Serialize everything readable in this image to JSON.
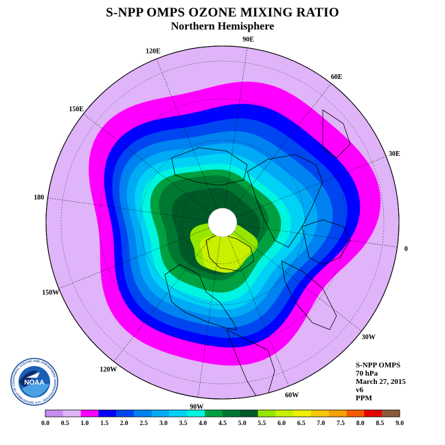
{
  "header": {
    "title": "S-NPP OMPS OZONE MIXING RATIO",
    "subtitle": "Northern Hemisphere"
  },
  "info_block": {
    "instrument": "S-NPP OMPS",
    "level": "70 hPa",
    "date": "March 27, 2015",
    "version": "v6",
    "units": "PPM"
  },
  "logo": {
    "text": "NOAA",
    "ring_text": "NATIONAL OCEANIC AND ATMOSPHERIC ADMINISTRATION · U.S. DEPARTMENT OF COMMERCE",
    "icon": "noaa-seal-icon"
  },
  "longitude_labels": [
    {
      "label": "90E",
      "lon": 90
    },
    {
      "label": "60E",
      "lon": 60
    },
    {
      "label": "30E",
      "lon": 30
    },
    {
      "label": "0",
      "lon": 0
    },
    {
      "label": "30W",
      "lon": -30
    },
    {
      "label": "60W",
      "lon": -60
    },
    {
      "label": "90W",
      "lon": -90
    },
    {
      "label": "120W",
      "lon": -120
    },
    {
      "label": "150W",
      "lon": -150
    },
    {
      "label": "180",
      "lon": 180
    },
    {
      "label": "150E",
      "lon": 150
    },
    {
      "label": "120E",
      "lon": 120
    }
  ],
  "colorbar": {
    "ticks": [
      "0.0",
      "0.5",
      "1.0",
      "1.5",
      "2.0",
      "2.5",
      "3.0",
      "3.5",
      "4.0",
      "4.5",
      "5.0",
      "5.5",
      "6.0",
      "6.5",
      "7.0",
      "7.5",
      "8.0",
      "8.5",
      "9.0"
    ],
    "colors": [
      "#c88cf0",
      "#e0b4f8",
      "#ff00ff",
      "#0000ff",
      "#0046f0",
      "#0082f0",
      "#00aaf5",
      "#00d2f5",
      "#00f5e1",
      "#00a040",
      "#007832",
      "#005a28",
      "#96e600",
      "#c8f000",
      "#f0f000",
      "#f5c800",
      "#f5a000",
      "#f55a00",
      "#e60000",
      "#8c5a3c"
    ]
  },
  "chart_data": {
    "type": "heatmap",
    "title": "S-NPP OMPS OZONE MIXING RATIO",
    "subtitle": "Northern Hemisphere",
    "projection": "north-polar-stereographic",
    "units": "PPM",
    "level": "70 hPa",
    "date": "March 27, 2015",
    "value_range": [
      0.0,
      9.0
    ],
    "contour_interval": 0.5,
    "pole_no_data": true,
    "field_description_levels": [
      1.0,
      1.5,
      2.0,
      2.5,
      3.0,
      3.5,
      4.0,
      4.5,
      5.0,
      5.5,
      6.0,
      6.5
    ]
  }
}
